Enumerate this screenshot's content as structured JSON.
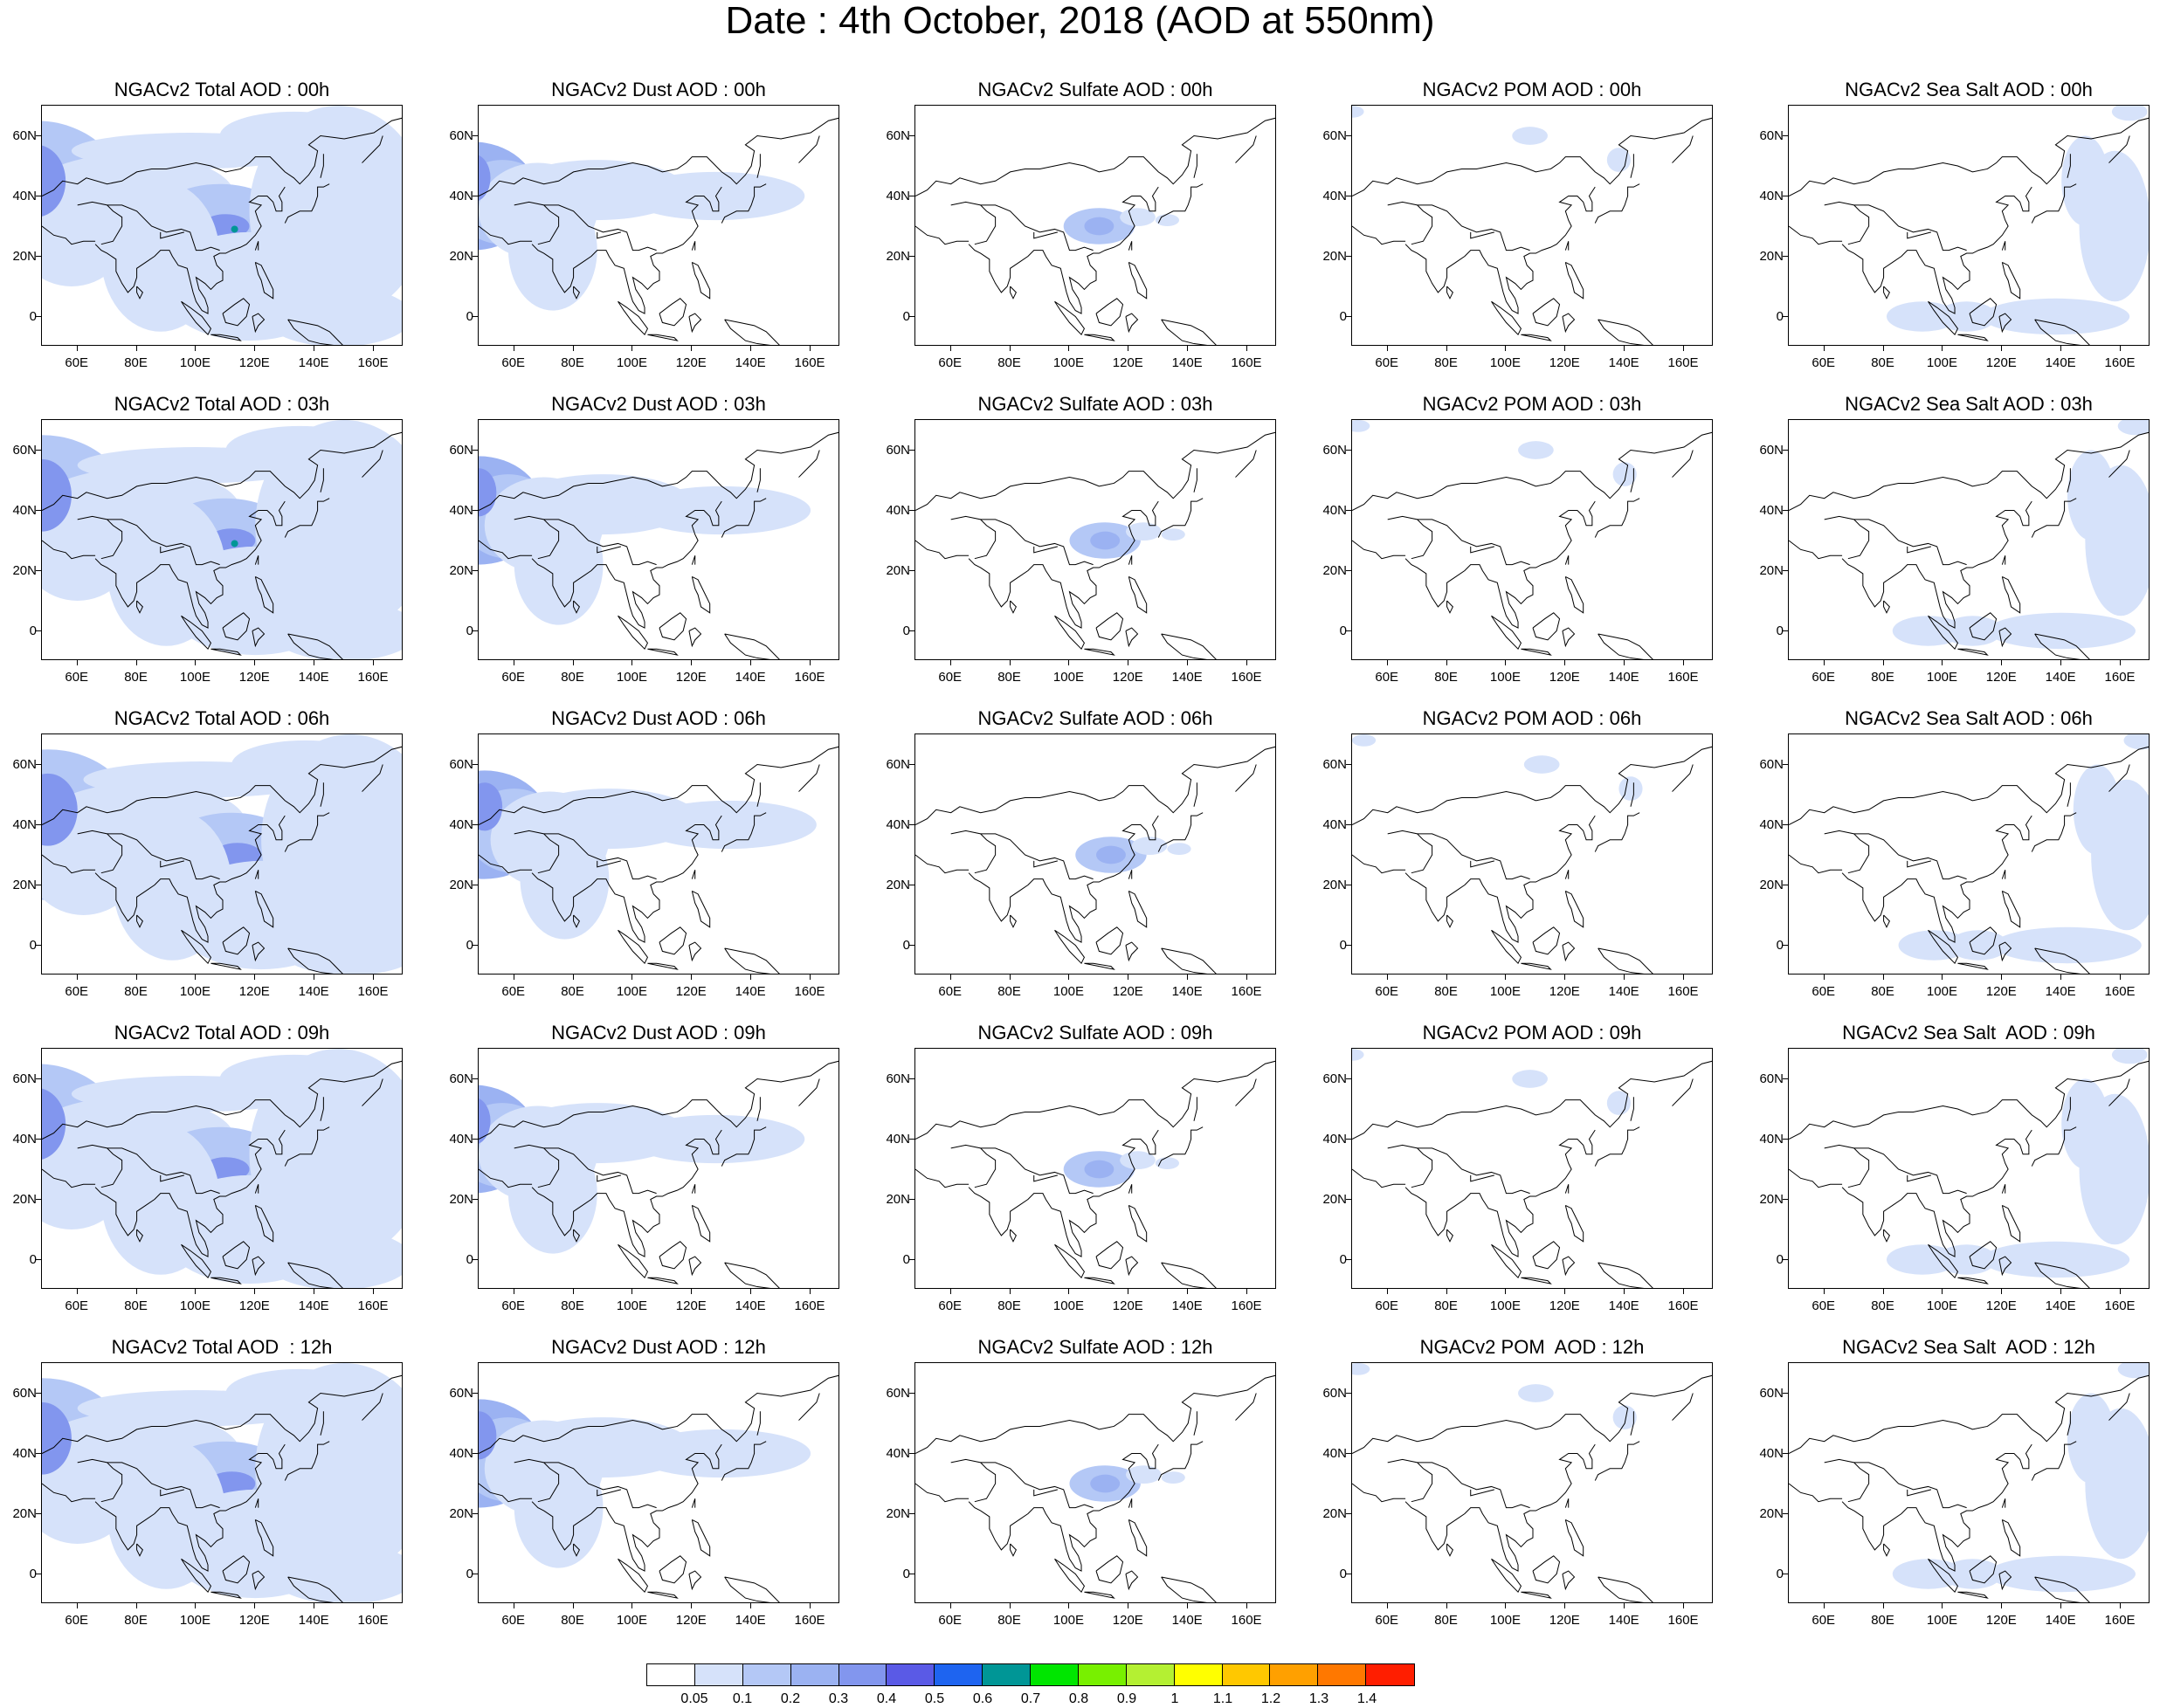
{
  "title": "Date : 4th October, 2018 (AOD at 550nm)",
  "lat_ticks": [
    "60N",
    "40N",
    "20N",
    "0"
  ],
  "lon_ticks": [
    "60E",
    "80E",
    "100E",
    "120E",
    "140E",
    "160E"
  ],
  "species": [
    {
      "key": "total",
      "titles": [
        "NGACv2 Total AOD : 00h",
        "NGACv2 Total AOD : 03h",
        "NGACv2 Total AOD : 06h",
        "NGACv2 Total AOD : 09h",
        "NGACv2 Total AOD  : 12h"
      ]
    },
    {
      "key": "dust",
      "titles": [
        "NGACv2 Dust AOD : 00h",
        "NGACv2 Dust AOD : 03h",
        "NGACv2 Dust AOD : 06h",
        "NGACv2 Dust AOD : 09h",
        "NGACv2 Dust AOD : 12h"
      ]
    },
    {
      "key": "sulfate",
      "titles": [
        "NGACv2 Sulfate AOD : 00h",
        "NGACv2 Sulfate AOD : 03h",
        "NGACv2 Sulfate AOD : 06h",
        "NGACv2 Sulfate AOD : 09h",
        "NGACv2 Sulfate AOD : 12h"
      ]
    },
    {
      "key": "pom",
      "titles": [
        "NGACv2 POM AOD : 00h",
        "NGACv2 POM AOD : 03h",
        "NGACv2 POM AOD : 06h",
        "NGACv2 POM AOD : 09h",
        "NGACv2 POM  AOD : 12h"
      ]
    },
    {
      "key": "seasalt",
      "titles": [
        "NGACv2 Sea Salt AOD : 00h",
        "NGACv2 Sea Salt AOD : 03h",
        "NGACv2 Sea Salt AOD : 06h",
        "NGACv2 Sea Salt  AOD : 09h",
        "NGACv2 Sea Salt  AOD : 12h"
      ]
    }
  ],
  "colorbar": {
    "labels": [
      "0.05",
      "0.1",
      "0.2",
      "0.3",
      "0.4",
      "0.5",
      "0.6",
      "0.7",
      "0.8",
      "0.9",
      "1",
      "1.1",
      "1.2",
      "1.3",
      "1.4"
    ],
    "colors": [
      "#ffffff",
      "#d6e2fa",
      "#b4c8f6",
      "#9bb2f2",
      "#8296ee",
      "#5a5ae6",
      "#1e64f0",
      "#009696",
      "#00e600",
      "#78f000",
      "#b4f032",
      "#ffff00",
      "#ffc800",
      "#ffa000",
      "#ff7800",
      "#ff1e00"
    ]
  }
}
